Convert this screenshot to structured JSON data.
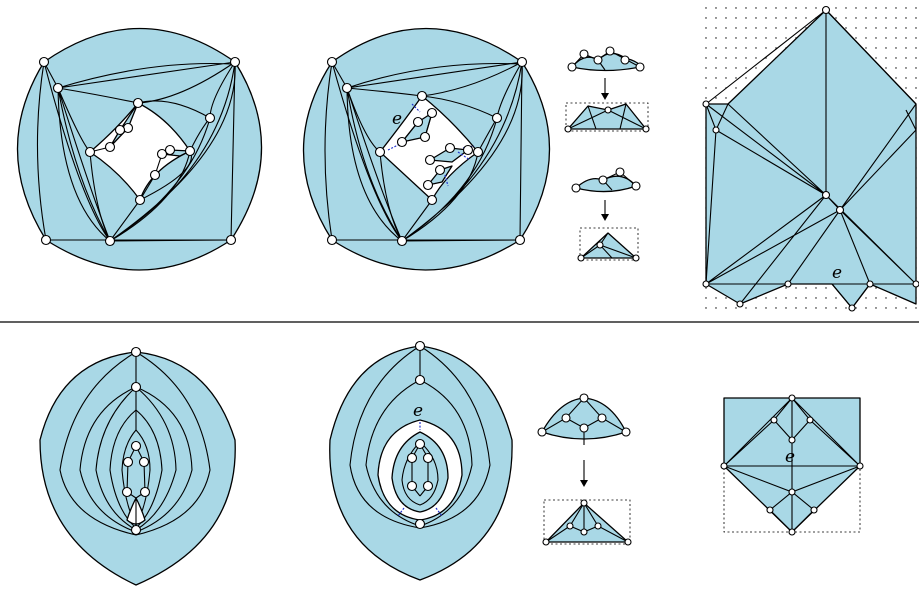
{
  "labels": {
    "top_middle_e": "e",
    "top_grid_e": "e",
    "bottom_middle_e": "e",
    "bottom_grid_e": "e"
  },
  "colors": {
    "face_fill": "#a9d8e6",
    "stroke": "#000000",
    "dual_marker": "#2233cc"
  }
}
